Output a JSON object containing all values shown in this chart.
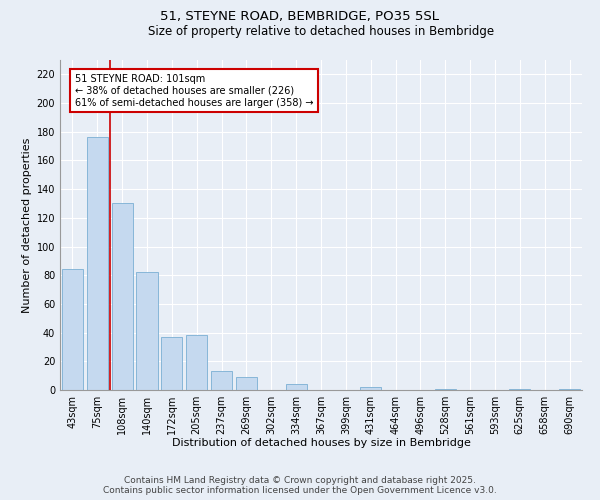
{
  "title1": "51, STEYNE ROAD, BEMBRIDGE, PO35 5SL",
  "title2": "Size of property relative to detached houses in Bembridge",
  "xlabel": "Distribution of detached houses by size in Bembridge",
  "ylabel": "Number of detached properties",
  "categories": [
    "43sqm",
    "75sqm",
    "108sqm",
    "140sqm",
    "172sqm",
    "205sqm",
    "237sqm",
    "269sqm",
    "302sqm",
    "334sqm",
    "367sqm",
    "399sqm",
    "431sqm",
    "464sqm",
    "496sqm",
    "528sqm",
    "561sqm",
    "593sqm",
    "625sqm",
    "658sqm",
    "690sqm"
  ],
  "values": [
    84,
    176,
    130,
    82,
    37,
    38,
    13,
    9,
    0,
    4,
    0,
    0,
    2,
    0,
    0,
    1,
    0,
    0,
    1,
    0,
    1
  ],
  "bar_color": "#c5d9ef",
  "bar_edge_color": "#7aafd4",
  "vline_color": "#cc0000",
  "annotation_text": "51 STEYNE ROAD: 101sqm\n← 38% of detached houses are smaller (226)\n61% of semi-detached houses are larger (358) →",
  "annotation_box_color": "#ffffff",
  "annotation_border_color": "#cc0000",
  "ylim": [
    0,
    230
  ],
  "yticks": [
    0,
    20,
    40,
    60,
    80,
    100,
    120,
    140,
    160,
    180,
    200,
    220
  ],
  "background_color": "#e8eef6",
  "plot_bg_color": "#e8eef6",
  "footer_text": "Contains HM Land Registry data © Crown copyright and database right 2025.\nContains public sector information licensed under the Open Government Licence v3.0.",
  "title_fontsize": 9.5,
  "subtitle_fontsize": 8.5,
  "xlabel_fontsize": 8,
  "ylabel_fontsize": 8,
  "tick_fontsize": 7,
  "footer_fontsize": 6.5,
  "annotation_fontsize": 7
}
